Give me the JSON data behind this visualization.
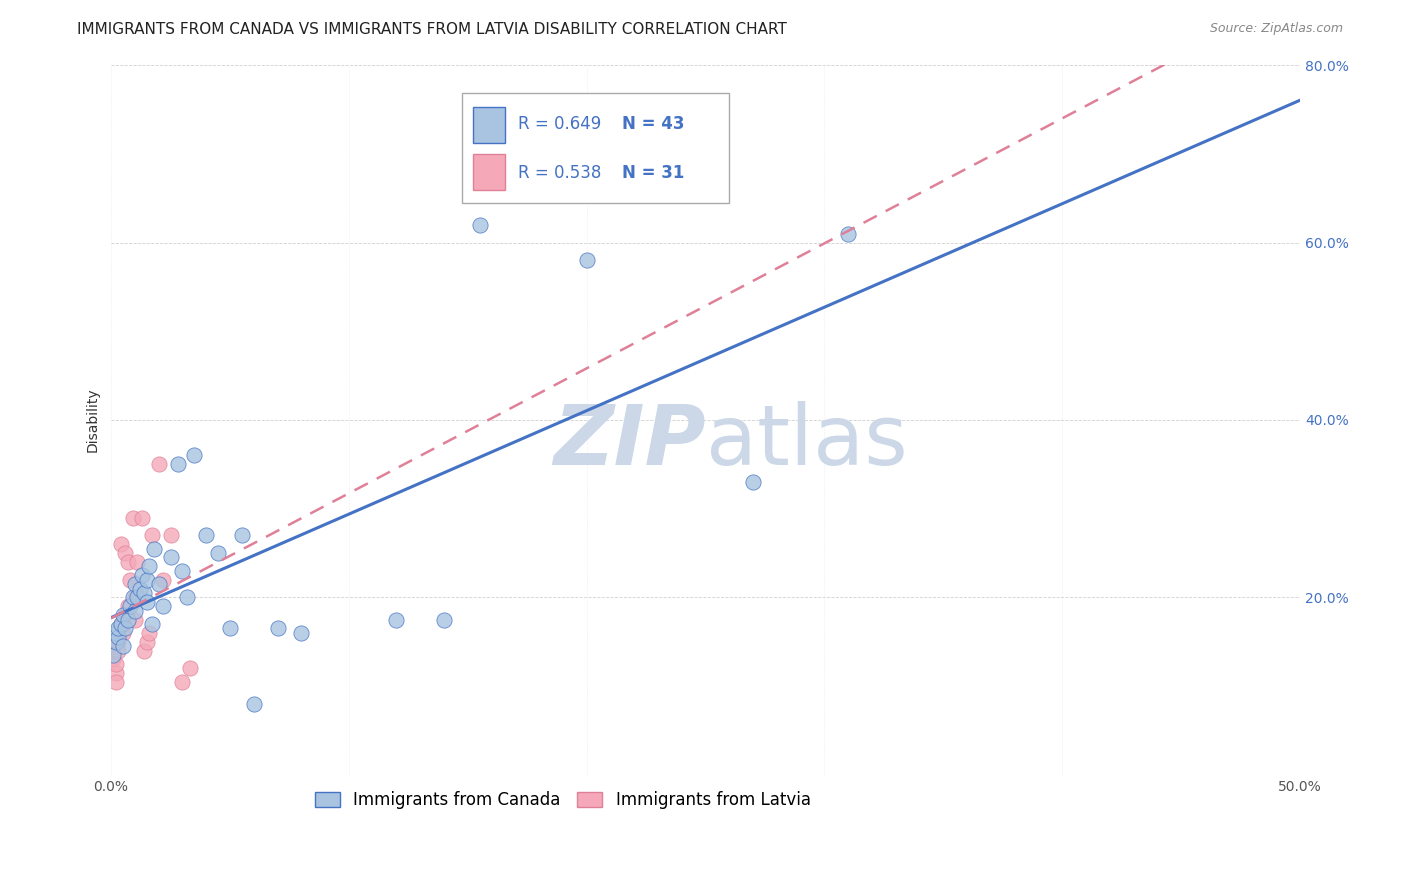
{
  "title": "IMMIGRANTS FROM CANADA VS IMMIGRANTS FROM LATVIA DISABILITY CORRELATION CHART",
  "source": "Source: ZipAtlas.com",
  "ylabel_label": "Disability",
  "legend_label1": "Immigrants from Canada",
  "legend_label2": "Immigrants from Latvia",
  "R1": 0.649,
  "N1": 43,
  "R2": 0.538,
  "N2": 31,
  "xlim": [
    0.0,
    0.5
  ],
  "ylim": [
    0.0,
    0.8
  ],
  "xticks": [
    0.0,
    0.1,
    0.2,
    0.3,
    0.4,
    0.5
  ],
  "yticks": [
    0.0,
    0.2,
    0.4,
    0.6,
    0.8
  ],
  "xtick_labels": [
    "0.0%",
    "",
    "",
    "",
    "",
    "50.0%"
  ],
  "ytick_labels_right": [
    "",
    "20.0%",
    "40.0%",
    "60.0%",
    "80.0%"
  ],
  "canada_x": [
    0.001,
    0.002,
    0.002,
    0.003,
    0.003,
    0.004,
    0.005,
    0.005,
    0.006,
    0.007,
    0.008,
    0.009,
    0.01,
    0.01,
    0.011,
    0.012,
    0.013,
    0.014,
    0.015,
    0.015,
    0.016,
    0.017,
    0.018,
    0.02,
    0.022,
    0.025,
    0.028,
    0.03,
    0.032,
    0.035,
    0.04,
    0.045,
    0.05,
    0.055,
    0.06,
    0.07,
    0.08,
    0.12,
    0.14,
    0.155,
    0.2,
    0.27,
    0.31
  ],
  "canada_y": [
    0.135,
    0.15,
    0.16,
    0.155,
    0.165,
    0.17,
    0.145,
    0.18,
    0.165,
    0.175,
    0.19,
    0.2,
    0.185,
    0.215,
    0.2,
    0.21,
    0.225,
    0.205,
    0.22,
    0.195,
    0.235,
    0.17,
    0.255,
    0.215,
    0.19,
    0.245,
    0.35,
    0.23,
    0.2,
    0.36,
    0.27,
    0.25,
    0.165,
    0.27,
    0.08,
    0.165,
    0.16,
    0.175,
    0.175,
    0.62,
    0.58,
    0.33,
    0.61
  ],
  "latvia_x": [
    0.001,
    0.001,
    0.002,
    0.002,
    0.002,
    0.003,
    0.003,
    0.004,
    0.004,
    0.005,
    0.005,
    0.006,
    0.006,
    0.007,
    0.007,
    0.008,
    0.009,
    0.01,
    0.01,
    0.011,
    0.012,
    0.013,
    0.014,
    0.015,
    0.016,
    0.017,
    0.02,
    0.022,
    0.025,
    0.03,
    0.033
  ],
  "latvia_y": [
    0.13,
    0.14,
    0.115,
    0.125,
    0.105,
    0.15,
    0.14,
    0.17,
    0.26,
    0.16,
    0.17,
    0.18,
    0.25,
    0.19,
    0.24,
    0.22,
    0.29,
    0.2,
    0.175,
    0.24,
    0.2,
    0.29,
    0.14,
    0.15,
    0.16,
    0.27,
    0.35,
    0.22,
    0.27,
    0.105,
    0.12
  ],
  "color_canada": "#a8c4e0",
  "color_latvia": "#f4a8b8",
  "line_color_canada": "#4472c4",
  "line_color_latvia": "#e08098",
  "background_color": "#ffffff",
  "title_fontsize": 11,
  "axis_label_fontsize": 10,
  "tick_fontsize": 10,
  "legend_fontsize": 12,
  "watermark_color": "#ccd8e8",
  "watermark_fontsize": 60
}
